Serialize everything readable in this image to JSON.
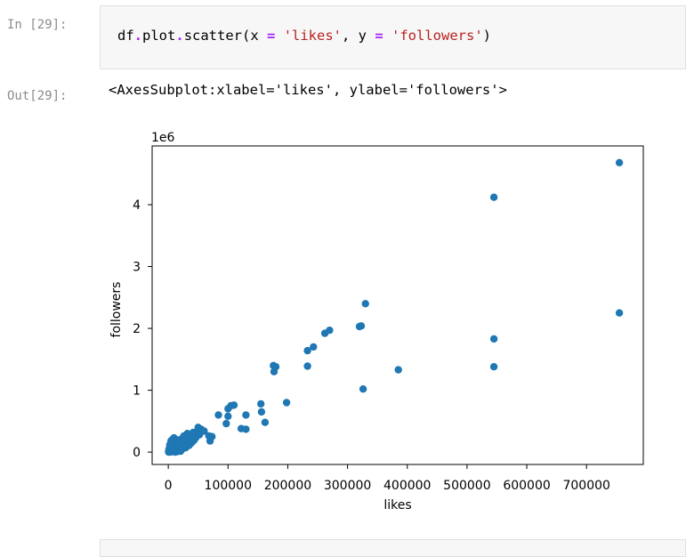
{
  "cells": {
    "in_prompt": "In [29]:",
    "out_prompt": "Out[29]:",
    "code": {
      "df": "df",
      "dot1": ".",
      "plot": "plot",
      "dot2": ".",
      "scatter": "scatter(x ",
      "eq1": "=",
      "str1": " 'likes'",
      "comma": ", y ",
      "eq2": "=",
      "str2": " 'followers'",
      "close": ")"
    },
    "output_text": "<AxesSubplot:xlabel='likes', ylabel='followers'>"
  },
  "chart_data": {
    "type": "scatter",
    "xlabel": "likes",
    "ylabel": "followers",
    "offset_text": "1e6",
    "xlim": [
      -27000,
      795000
    ],
    "ylim": [
      -200000,
      4950000
    ],
    "xticks": [
      0,
      100000,
      200000,
      300000,
      400000,
      500000,
      600000,
      700000
    ],
    "xtick_labels": [
      "0",
      "100000",
      "200000",
      "300000",
      "400000",
      "500000",
      "600000",
      "700000"
    ],
    "yticks": [
      0,
      1000000,
      2000000,
      3000000,
      4000000
    ],
    "ytick_labels": [
      "0",
      "1",
      "2",
      "3",
      "4"
    ],
    "marker_color": "#1f77b4",
    "grid": false,
    "points": [
      [
        755000,
        4680000
      ],
      [
        545000,
        4120000
      ],
      [
        755000,
        2250000
      ],
      [
        545000,
        1830000
      ],
      [
        545000,
        1380000
      ],
      [
        385000,
        1330000
      ],
      [
        326000,
        1020000
      ],
      [
        330000,
        2400000
      ],
      [
        323000,
        2040000
      ],
      [
        320000,
        2030000
      ],
      [
        270000,
        1970000
      ],
      [
        262000,
        1920000
      ],
      [
        243000,
        1700000
      ],
      [
        233000,
        1640000
      ],
      [
        233000,
        1390000
      ],
      [
        180000,
        1380000
      ],
      [
        176000,
        1400000
      ],
      [
        177000,
        1300000
      ],
      [
        198000,
        800000
      ],
      [
        155000,
        780000
      ],
      [
        156000,
        650000
      ],
      [
        162000,
        480000
      ],
      [
        130000,
        600000
      ],
      [
        130000,
        370000
      ],
      [
        122000,
        380000
      ],
      [
        110000,
        760000
      ],
      [
        105000,
        750000
      ],
      [
        100000,
        700000
      ],
      [
        100000,
        580000
      ],
      [
        97000,
        460000
      ],
      [
        84000,
        600000
      ],
      [
        73000,
        250000
      ],
      [
        70000,
        180000
      ],
      [
        68000,
        260000
      ],
      [
        55000,
        370000
      ],
      [
        50000,
        400000
      ],
      [
        48000,
        300000
      ],
      [
        45000,
        250000
      ],
      [
        42000,
        320000
      ],
      [
        40000,
        200000
      ],
      [
        38000,
        280000
      ],
      [
        36000,
        220000
      ],
      [
        34000,
        260000
      ],
      [
        33000,
        150000
      ],
      [
        31000,
        200000
      ],
      [
        30000,
        120000
      ],
      [
        28000,
        230000
      ],
      [
        27000,
        180000
      ],
      [
        25000,
        100000
      ],
      [
        24000,
        160000
      ],
      [
        22000,
        210000
      ],
      [
        21000,
        140000
      ],
      [
        20000,
        90000
      ],
      [
        19000,
        180000
      ],
      [
        18000,
        120000
      ],
      [
        17000,
        60000
      ],
      [
        16000,
        150000
      ],
      [
        15000,
        100000
      ],
      [
        14000,
        200000
      ],
      [
        13000,
        50000
      ],
      [
        12000,
        120000
      ],
      [
        11000,
        80000
      ],
      [
        10000,
        160000
      ],
      [
        9000,
        40000
      ],
      [
        8000,
        100000
      ],
      [
        7000,
        60000
      ],
      [
        6000,
        140000
      ],
      [
        5000,
        30000
      ],
      [
        4000,
        90000
      ],
      [
        3000,
        20000
      ],
      [
        2000,
        70000
      ],
      [
        1500,
        10000
      ],
      [
        1000,
        40000
      ],
      [
        500,
        5000
      ],
      [
        2500,
        120000
      ],
      [
        6500,
        200000
      ],
      [
        9500,
        230000
      ],
      [
        3500,
        0
      ],
      [
        7500,
        10000
      ],
      [
        12500,
        20000
      ],
      [
        18500,
        30000
      ],
      [
        23500,
        50000
      ],
      [
        29000,
        70000
      ],
      [
        35000,
        110000
      ],
      [
        39000,
        150000
      ],
      [
        43000,
        190000
      ],
      [
        46000,
        230000
      ],
      [
        52000,
        280000
      ],
      [
        60000,
        340000
      ],
      [
        26000,
        260000
      ],
      [
        32000,
        300000
      ],
      [
        11500,
        0
      ],
      [
        15500,
        10000
      ],
      [
        20500,
        15000
      ],
      [
        800,
        0
      ],
      [
        4500,
        180000
      ]
    ]
  }
}
